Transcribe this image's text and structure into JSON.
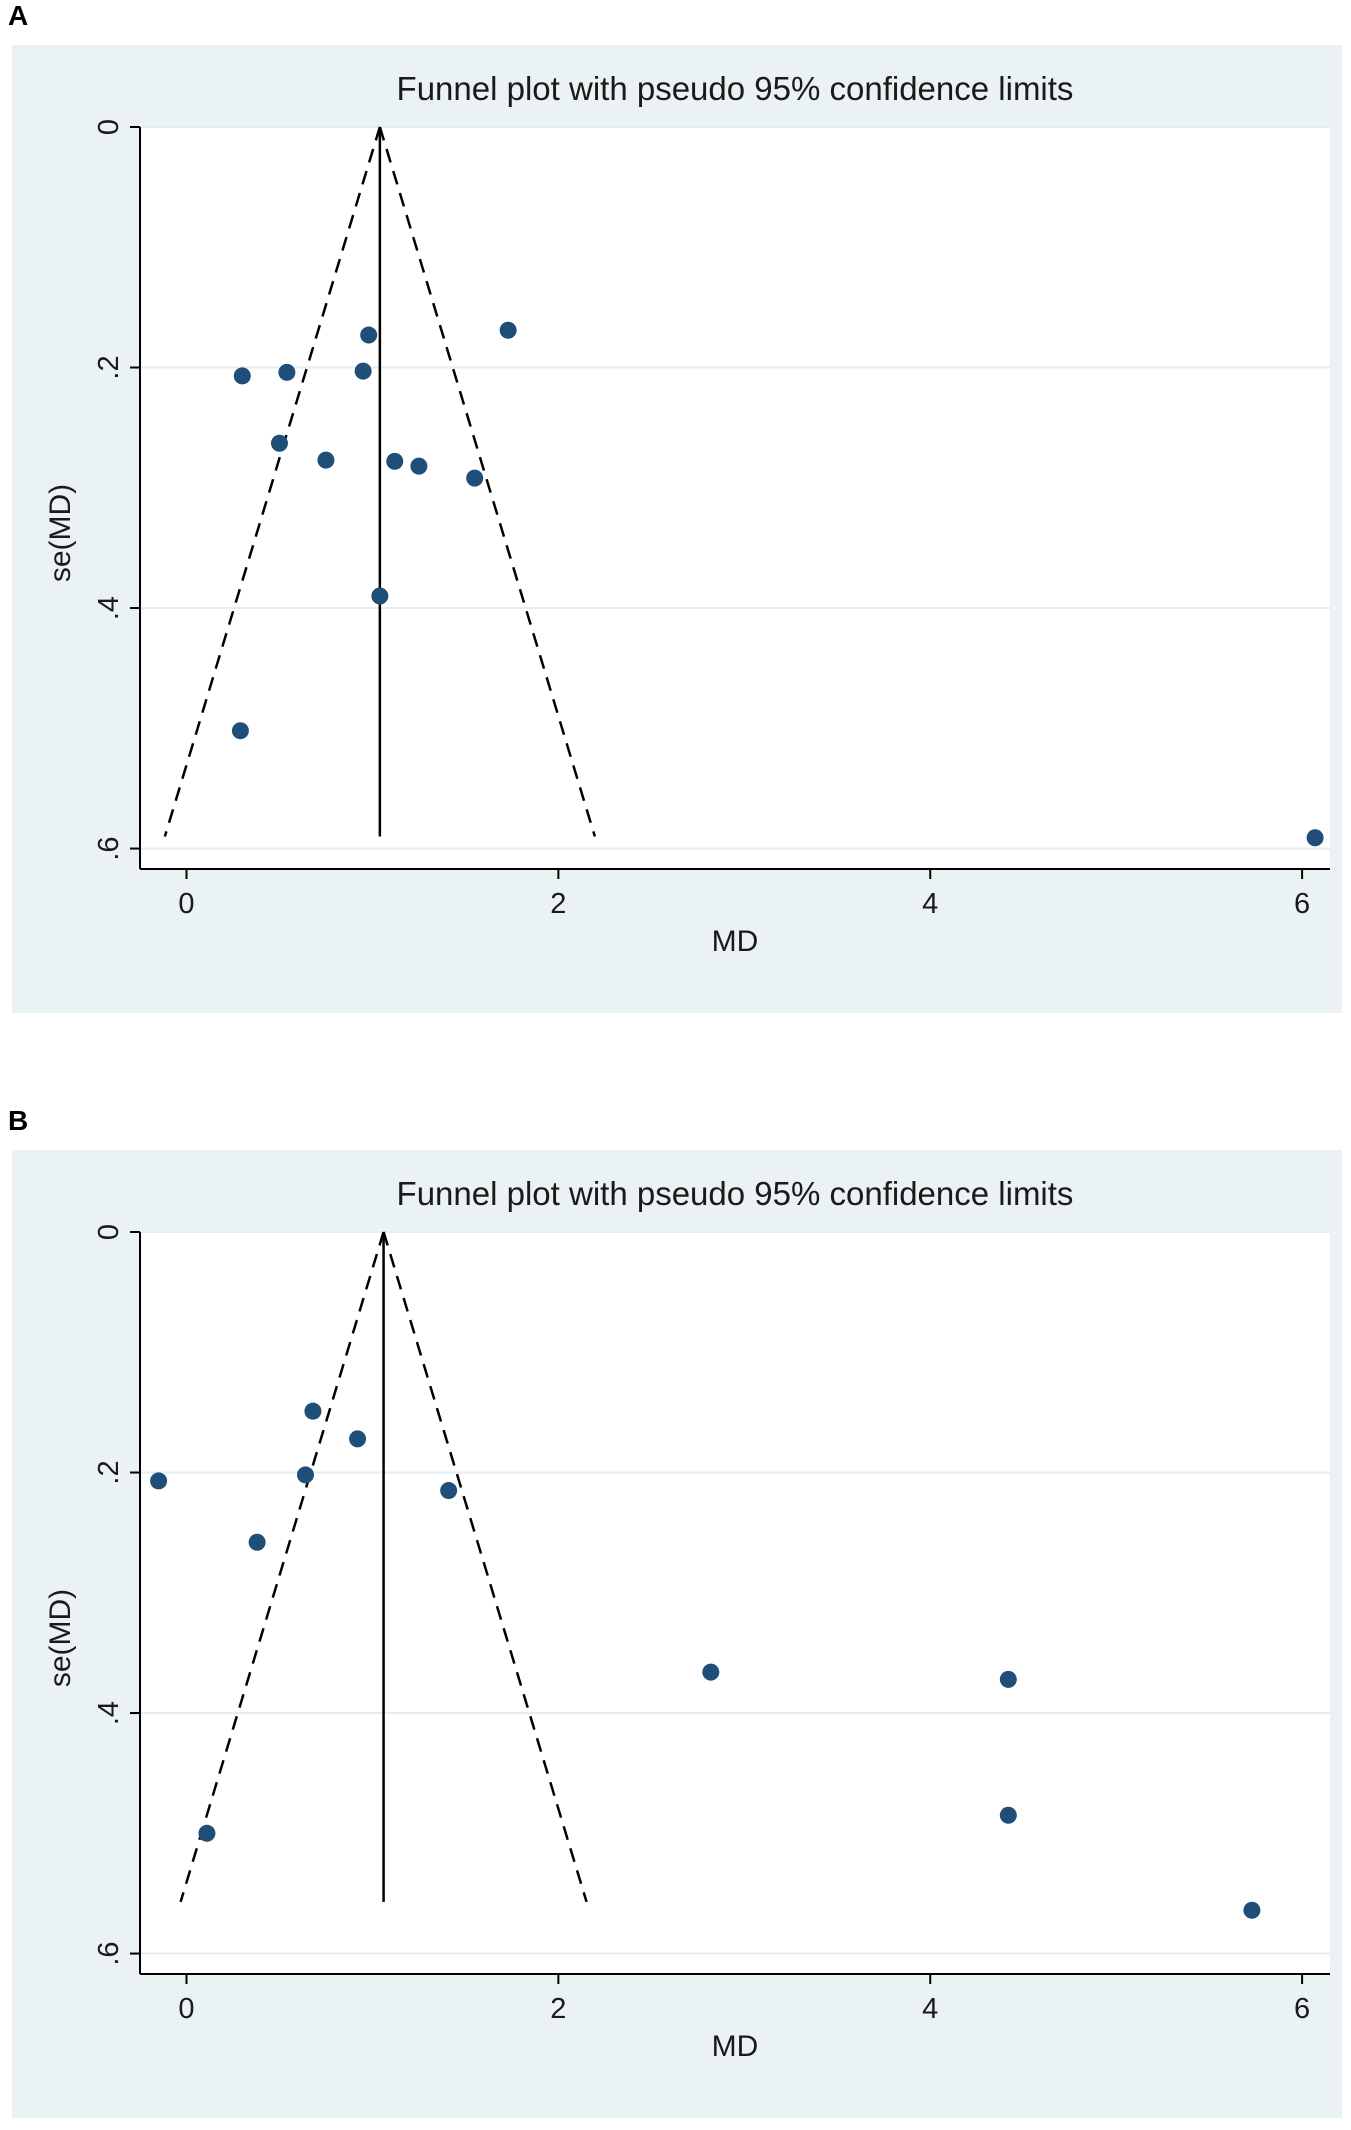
{
  "panels": [
    {
      "letter": "A"
    },
    {
      "letter": "B"
    }
  ],
  "colors": {
    "background": "#eaf2f3",
    "plot_area": "#ffffff",
    "gridline": "#e3eef1",
    "marker": "#1f4e79",
    "lines": "#000000"
  },
  "chart_data": [
    {
      "type": "scatter",
      "title": "Funnel plot with pseudo 95% confidence limits",
      "xlabel": "MD",
      "ylabel": "se(MD)",
      "xlim": [
        -0.25,
        6.15
      ],
      "ylim": [
        0,
        0.617
      ],
      "y_reversed": true,
      "grid": true,
      "xticks": [
        0,
        2,
        4,
        6
      ],
      "xtick_labels": [
        "0",
        "2",
        "4",
        "6"
      ],
      "yticks": [
        0,
        0.2,
        0.4,
        0.6
      ],
      "ytick_labels": [
        "0",
        ".2",
        ".4",
        ".6"
      ],
      "pooled_estimate": 1.04,
      "funnel_se_max": 0.59,
      "points": [
        {
          "x": 0.3,
          "y": 0.207
        },
        {
          "x": 0.54,
          "y": 0.204
        },
        {
          "x": 0.95,
          "y": 0.203
        },
        {
          "x": 0.98,
          "y": 0.173
        },
        {
          "x": 1.73,
          "y": 0.169
        },
        {
          "x": 0.5,
          "y": 0.263
        },
        {
          "x": 0.75,
          "y": 0.277
        },
        {
          "x": 1.12,
          "y": 0.278
        },
        {
          "x": 1.25,
          "y": 0.282
        },
        {
          "x": 1.55,
          "y": 0.292
        },
        {
          "x": 1.04,
          "y": 0.39
        },
        {
          "x": 0.29,
          "y": 0.502
        },
        {
          "x": 6.07,
          "y": 0.591
        }
      ]
    },
    {
      "type": "scatter",
      "title": "Funnel plot with pseudo 95% confidence limits",
      "xlabel": "MD",
      "ylabel": "se(MD)",
      "xlim": [
        -0.25,
        6.15
      ],
      "ylim": [
        0,
        0.617
      ],
      "y_reversed": true,
      "grid": true,
      "xticks": [
        0,
        2,
        4,
        6
      ],
      "xtick_labels": [
        "0",
        "2",
        "4",
        "6"
      ],
      "yticks": [
        0,
        0.2,
        0.4,
        0.6
      ],
      "ytick_labels": [
        "0",
        ".2",
        ".4",
        ".6"
      ],
      "pooled_estimate": 1.06,
      "funnel_se_max": 0.557,
      "points": [
        {
          "x": -0.15,
          "y": 0.207
        },
        {
          "x": 0.68,
          "y": 0.149
        },
        {
          "x": 0.92,
          "y": 0.172
        },
        {
          "x": 0.64,
          "y": 0.202
        },
        {
          "x": 1.41,
          "y": 0.215
        },
        {
          "x": 0.38,
          "y": 0.258
        },
        {
          "x": 0.11,
          "y": 0.5
        },
        {
          "x": 2.82,
          "y": 0.366
        },
        {
          "x": 4.42,
          "y": 0.372
        },
        {
          "x": 4.42,
          "y": 0.485
        },
        {
          "x": 5.73,
          "y": 0.564
        }
      ]
    }
  ]
}
